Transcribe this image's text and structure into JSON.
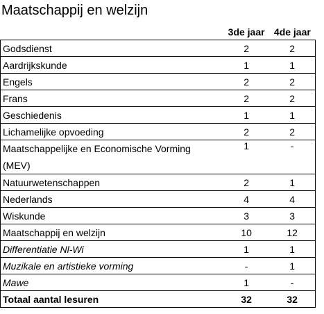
{
  "title": "Maatschappij en welzijn",
  "table": {
    "columns": [
      "3de jaar",
      "4de jaar"
    ],
    "rows": [
      {
        "label": "Godsdienst",
        "values": [
          2,
          2
        ]
      },
      {
        "label": "Aardrijkskunde",
        "values": [
          1,
          1
        ]
      },
      {
        "label": "Engels",
        "values": [
          2,
          2
        ]
      },
      {
        "label": "Frans",
        "values": [
          2,
          2
        ]
      },
      {
        "label": "Geschiedenis",
        "values": [
          1,
          1
        ]
      },
      {
        "label": "Lichamelijke opvoeding",
        "values": [
          2,
          2
        ]
      },
      {
        "label": "Maatschappelijke en Economische Vorming (MEV)",
        "values": [
          1,
          "-"
        ]
      },
      {
        "label": "Natuurwetenschappen",
        "values": [
          2,
          1
        ]
      },
      {
        "label": "Nederlands",
        "values": [
          4,
          4
        ]
      },
      {
        "label": "Wiskunde",
        "values": [
          3,
          3
        ]
      },
      {
        "label": "Maatschappij en welzijn",
        "values": [
          10,
          12
        ]
      },
      {
        "label": "Differentiatie Nl-Wi",
        "values": [
          1,
          1
        ],
        "style": "italic"
      },
      {
        "label": "Muzikale en artistieke vorming",
        "values": [
          "-",
          1
        ],
        "style": "italic"
      },
      {
        "label": "Mawe",
        "values": [
          1,
          "-"
        ],
        "style": "italic"
      },
      {
        "label": "Totaal aantal lesuren",
        "values": [
          32,
          32
        ],
        "style": "bold"
      }
    ]
  }
}
